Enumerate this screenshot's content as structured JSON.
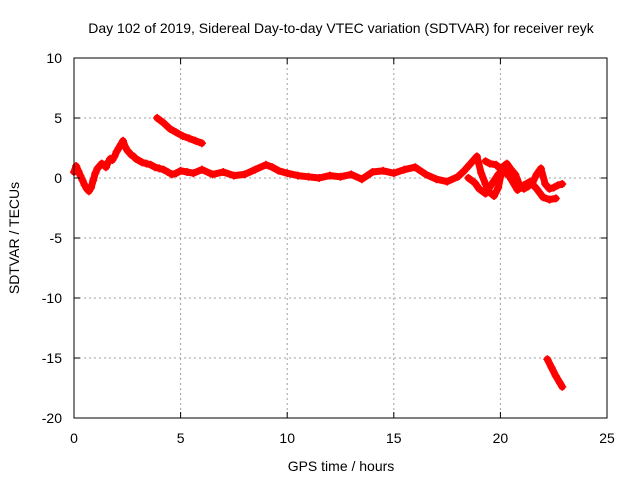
{
  "chart_data": {
    "type": "scatter",
    "title": "Day 102 of 2019, Sidereal Day-to-day VTEC variation (SDTVAR) for receiver reyk",
    "xlabel": "GPS time / hours",
    "ylabel": "SDTVAR / TECUs",
    "xlim": [
      0,
      25
    ],
    "ylim": [
      -20,
      10
    ],
    "xticks": [
      0,
      5,
      10,
      15,
      20,
      25
    ],
    "yticks": [
      -20,
      -15,
      -10,
      -5,
      0,
      5,
      10
    ],
    "grid": true,
    "series": [
      {
        "name": "SDTVAR",
        "color": "#ff0000",
        "marker": "plus",
        "segments": [
          {
            "x": [
              0.0,
              0.1,
              0.2,
              0.3,
              0.4,
              0.5,
              0.6,
              0.7,
              0.8,
              0.9,
              1.0,
              1.1,
              1.2,
              1.3,
              1.4,
              1.5,
              1.6,
              1.7,
              1.8,
              1.9,
              2.0,
              2.1,
              2.2,
              2.3,
              2.4,
              2.5,
              2.6,
              2.7,
              2.8,
              2.9,
              3.0,
              3.2,
              3.4,
              3.6,
              3.8,
              4.0,
              4.2,
              4.4,
              4.6,
              4.8,
              5.0,
              5.3,
              5.6,
              6.0,
              6.5,
              7.0,
              7.5,
              8.0,
              8.5,
              9.0,
              9.3,
              9.6,
              10.0,
              10.5,
              11.0,
              11.5,
              12.0,
              12.5,
              13.0,
              13.5,
              14.0,
              14.5,
              15.0,
              15.5,
              16.0,
              16.5,
              17.0,
              17.5,
              18.0,
              18.3,
              18.6,
              18.9,
              19.1,
              19.3,
              19.5,
              19.7,
              19.9,
              20.1,
              20.3,
              20.5,
              20.7,
              20.9,
              21.1,
              21.3,
              21.5,
              21.7,
              21.9,
              22.1,
              22.3,
              22.5,
              22.7,
              22.9
            ],
            "y": [
              0.5,
              1.0,
              0.6,
              0.2,
              -0.2,
              -0.6,
              -0.9,
              -1.1,
              -0.8,
              -0.2,
              0.4,
              0.8,
              1.0,
              1.2,
              1.1,
              0.9,
              1.3,
              1.6,
              1.5,
              1.8,
              2.2,
              2.5,
              2.8,
              3.1,
              2.6,
              2.3,
              2.1,
              1.9,
              1.8,
              1.6,
              1.5,
              1.3,
              1.2,
              1.1,
              0.9,
              0.8,
              0.7,
              0.5,
              0.3,
              0.4,
              0.6,
              0.5,
              0.4,
              0.7,
              0.3,
              0.5,
              0.2,
              0.3,
              0.7,
              1.1,
              0.9,
              0.6,
              0.4,
              0.2,
              0.1,
              0.0,
              0.2,
              0.1,
              0.3,
              -0.1,
              0.5,
              0.6,
              0.4,
              0.7,
              0.9,
              0.3,
              -0.1,
              -0.3,
              0.1,
              0.6,
              1.2,
              1.8,
              0.4,
              -0.5,
              -1.2,
              -1.5,
              -0.8,
              0.9,
              1.2,
              0.7,
              0.3,
              -0.6,
              -0.9,
              -0.7,
              -0.4,
              0.3,
              0.8,
              -0.5,
              -0.9,
              -0.8,
              -0.6,
              -0.5
            ]
          },
          {
            "x": [
              3.9,
              4.2,
              4.5,
              4.8,
              5.1,
              5.4,
              5.7,
              6.0
            ],
            "y": [
              5.0,
              4.6,
              4.1,
              3.8,
              3.5,
              3.3,
              3.1,
              2.9
            ]
          },
          {
            "x": [
              18.5,
              18.8,
              19.0,
              19.3,
              19.6,
              19.9,
              20.2,
              20.5,
              20.8,
              21.1,
              21.4,
              21.7,
              22.0,
              22.3,
              22.6
            ],
            "y": [
              0.0,
              -0.4,
              -0.9,
              -1.3,
              -0.5,
              0.3,
              0.8,
              -0.1,
              -1.0,
              -0.6,
              -0.3,
              -0.9,
              -1.6,
              -1.8,
              -1.7
            ]
          },
          {
            "x": [
              19.3,
              19.5,
              19.8,
              20.1,
              20.4,
              20.7,
              21.0
            ],
            "y": [
              1.4,
              1.2,
              1.1,
              0.6,
              0.2,
              -0.4,
              -0.8
            ]
          },
          {
            "x": [
              22.2,
              22.4,
              22.6,
              22.8,
              22.9
            ],
            "y": [
              -15.1,
              -15.8,
              -16.5,
              -17.1,
              -17.4
            ]
          }
        ]
      }
    ]
  }
}
